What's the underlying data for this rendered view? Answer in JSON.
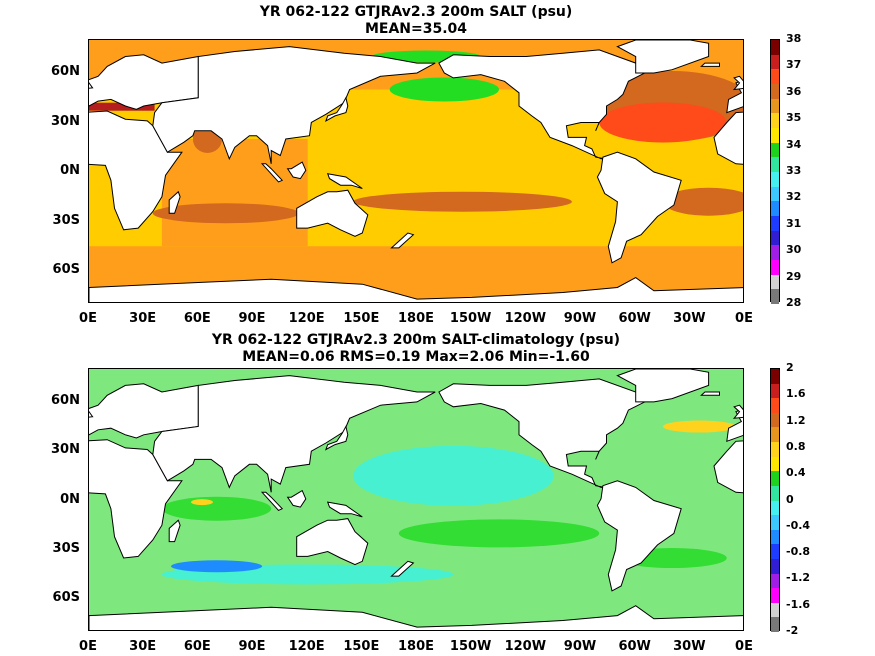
{
  "chart_data": [
    {
      "type": "heatmap",
      "title": "YR 062-122 GTJRAv2.3 200m SALT (psu)",
      "subtitle": "MEAN=35.04",
      "x_ticks": [
        "0E",
        "30E",
        "60E",
        "90E",
        "120E",
        "150E",
        "180E",
        "150W",
        "120W",
        "90W",
        "60W",
        "30W",
        "0E"
      ],
      "y_ticks": [
        "60N",
        "30N",
        "0N",
        "30S",
        "60S"
      ],
      "colorbar": {
        "labels": [
          "38",
          "37",
          "36",
          "35",
          "34",
          "33",
          "32",
          "31",
          "30",
          "29",
          "28"
        ],
        "colors": [
          "#7a0000",
          "#c81e1e",
          "#ff4a1a",
          "#d2691e",
          "#e6961e",
          "#ffd21e",
          "#ffe600",
          "#1ed21e",
          "#32e6a0",
          "#46f0f0",
          "#3cc8ff",
          "#1e8cff",
          "#1e3cff",
          "#321ed2",
          "#a01ee6",
          "#ff00ff",
          "#d2d2d2",
          "#787878"
        ]
      },
      "fields": {
        "background": "#ffcc00",
        "high_latitude": "#ff9e1a",
        "subtropical_max": "#d2691e",
        "north_atlantic_max": "#ff4a1a",
        "mediterranean": "#b41e1e",
        "north_pacific_low": "#22dd22",
        "land": "#ffffff"
      }
    },
    {
      "type": "heatmap",
      "title": "YR 062-122 GTJRAv2.3 200m SALT-climatology (psu)",
      "subtitle": "MEAN=0.06   RMS=0.19   Max=2.06   Min=-1.60",
      "x_ticks": [
        "0E",
        "30E",
        "60E",
        "90E",
        "120E",
        "150E",
        "180E",
        "150W",
        "120W",
        "90W",
        "60W",
        "30W",
        "0E"
      ],
      "y_ticks": [
        "60N",
        "30N",
        "0N",
        "30S",
        "60S"
      ],
      "colorbar": {
        "labels": [
          "2",
          "1.6",
          "1.2",
          "0.8",
          "0.4",
          "0",
          "-0.4",
          "-0.8",
          "-1.2",
          "-1.6",
          "-2"
        ],
        "colors": [
          "#7a0000",
          "#c81e1e",
          "#ff4a1a",
          "#d2691e",
          "#e6961e",
          "#ffd21e",
          "#ffe600",
          "#1ed21e",
          "#32e6a0",
          "#46f0f0",
          "#3cc8ff",
          "#1e8cff",
          "#1e3cff",
          "#321ed2",
          "#a01ee6",
          "#ff00ff",
          "#d2d2d2",
          "#787878"
        ]
      },
      "fields": {
        "background": "#7ee87e",
        "weak_positive": "#33dd33",
        "weak_negative": "#46f0d0",
        "positive_spot": "#ffd21e",
        "negative_spot": "#1e8cff",
        "land": "#ffffff"
      }
    }
  ]
}
